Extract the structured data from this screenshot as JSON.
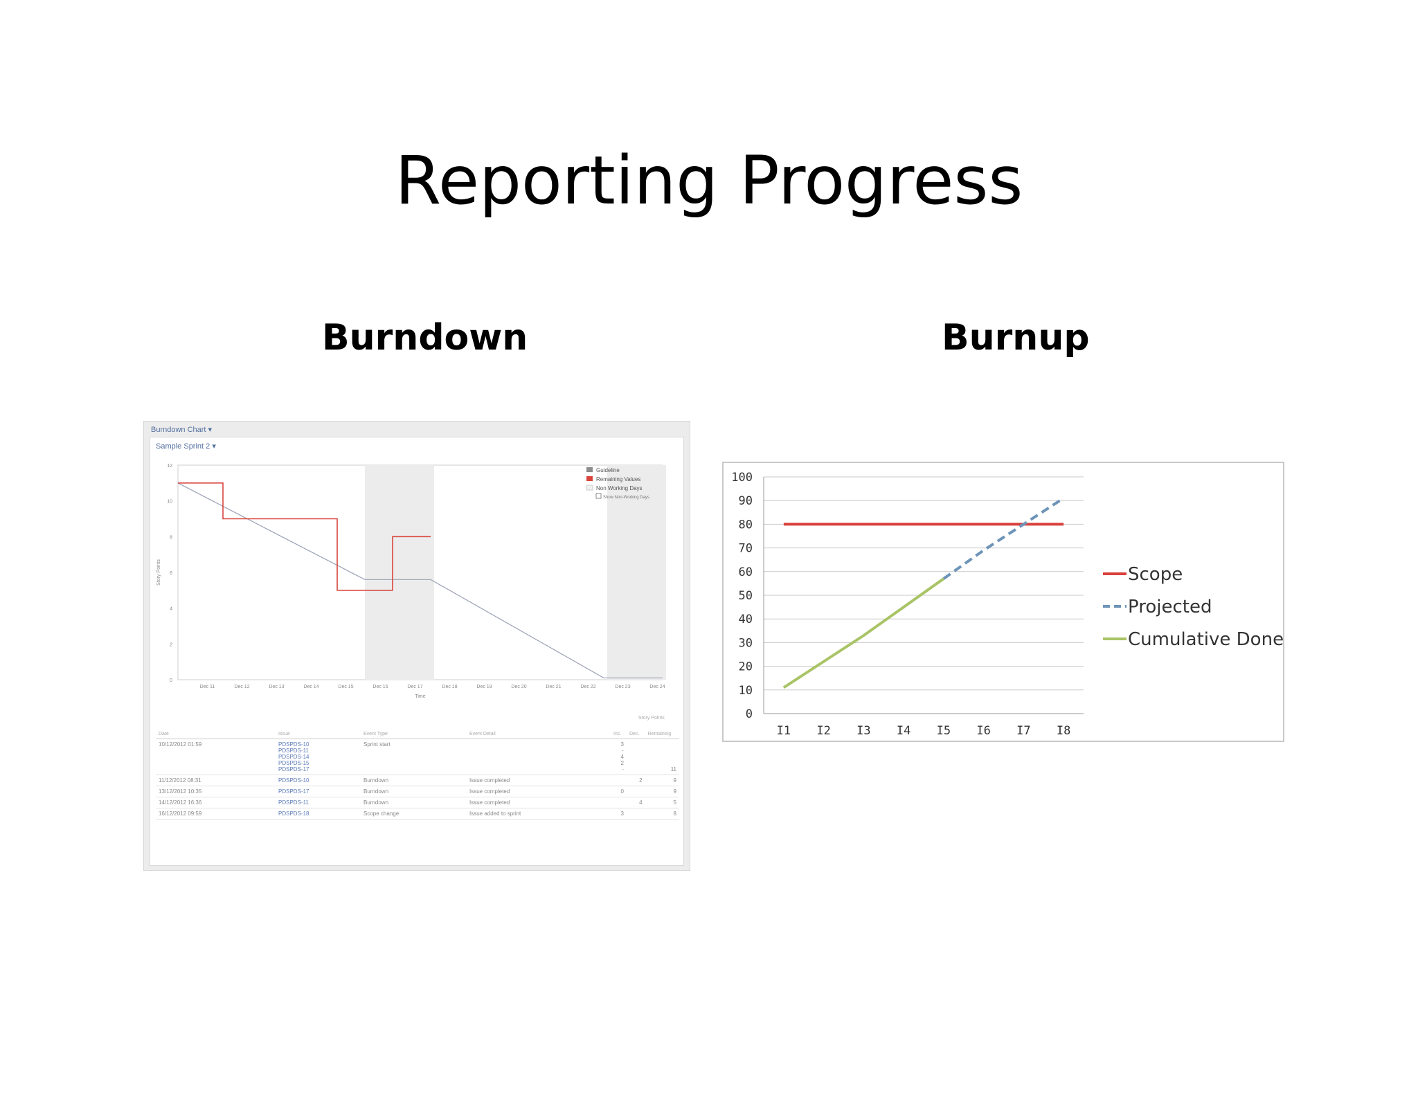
{
  "slide": {
    "title": "Reporting Progress",
    "left_heading": "Burndown",
    "right_heading": "Burnup"
  },
  "burndown": {
    "header": "Burndown Chart",
    "sprint": "Sample Sprint 2",
    "ylabel": "Story Points",
    "xlabel": "Time",
    "legend": [
      "Guideline",
      "Remaining Values",
      "Non Working Days",
      "Show Non-Working Days"
    ],
    "table": {
      "story_points_header": "Story Points",
      "headers": [
        "Date",
        "Issue",
        "Event Type",
        "Event Detail",
        "Inc.",
        "Dec.",
        "Remaining"
      ],
      "rows": [
        {
          "date": "10/12/2012 01:59",
          "issues": [
            "PDSPDS-10",
            "PDSPDS-11",
            "PDSPDS-14",
            "PDSPDS-15",
            "PDSPDS-17"
          ],
          "type": "Sprint start",
          "detail": "",
          "inc": [
            "3",
            "-",
            "4",
            "2",
            "-"
          ],
          "dec": "",
          "remaining": "11"
        },
        {
          "date": "11/12/2012 08:31",
          "issues": [
            "PDSPDS-10"
          ],
          "type": "Burndown",
          "detail": "Issue completed",
          "inc": [
            ""
          ],
          "dec": "2",
          "remaining": "9"
        },
        {
          "date": "13/12/2012 10:35",
          "issues": [
            "PDSPDS-17"
          ],
          "type": "Burndown",
          "detail": "Issue completed",
          "inc": [
            "0"
          ],
          "dec": "",
          "remaining": "9"
        },
        {
          "date": "14/12/2012 16:36",
          "issues": [
            "PDSPDS-11"
          ],
          "type": "Burndown",
          "detail": "Issue completed",
          "inc": [
            ""
          ],
          "dec": "4",
          "remaining": "5"
        },
        {
          "date": "16/12/2012 09:59",
          "issues": [
            "PDSPDS-18"
          ],
          "type": "Scope change",
          "detail": "Issue added to sprint",
          "inc": [
            "3"
          ],
          "dec": "",
          "remaining": "8"
        }
      ]
    }
  },
  "chart_data": [
    {
      "type": "line",
      "x": [
        "Dec 11",
        "Dec 12",
        "Dec 13",
        "Dec 14",
        "Dec 15",
        "Dec 16",
        "Dec 17",
        "Dec 18",
        "Dec 19",
        "Dec 20",
        "Dec 21",
        "Dec 22",
        "Dec 23",
        "Dec 24"
      ],
      "xlabel": "Time",
      "ylabel": "Story Points",
      "yticks": [
        0,
        2,
        4,
        6,
        8,
        10,
        12
      ],
      "ylim": [
        0,
        12
      ],
      "series": [
        {
          "name": "Guideline",
          "points": [
            [
              0,
              11
            ],
            [
              5.4,
              5.6
            ],
            [
              7.3,
              5.6
            ],
            [
              12.3,
              0.1
            ],
            [
              14,
              0.1
            ]
          ]
        },
        {
          "name": "Remaining Values",
          "step": true,
          "points": [
            [
              0,
              11
            ],
            [
              1.3,
              11
            ],
            [
              1.3,
              9
            ],
            [
              4.6,
              9
            ],
            [
              4.6,
              5
            ],
            [
              6.2,
              5
            ],
            [
              6.2,
              8
            ],
            [
              7.3,
              8
            ]
          ]
        }
      ],
      "non_working_days": [
        [
          5.4,
          7.4
        ],
        [
          12.4,
          14.1
        ]
      ],
      "legend": "top-right"
    },
    {
      "type": "line",
      "x": [
        "I1",
        "I2",
        "I3",
        "I4",
        "I5",
        "I6",
        "I7",
        "I8"
      ],
      "yticks": [
        0,
        10,
        20,
        30,
        40,
        50,
        60,
        70,
        80,
        90,
        100
      ],
      "ylim": [
        0,
        100
      ],
      "series": [
        {
          "name": "Scope",
          "values": [
            80,
            80,
            80,
            80,
            80,
            80,
            80,
            80
          ],
          "color": "#d9403c",
          "dash": "solid"
        },
        {
          "name": "Projected",
          "values": [
            null,
            null,
            null,
            null,
            57,
            69,
            80,
            91
          ],
          "color": "#6e94b8",
          "dash": "dashed"
        },
        {
          "name": "Cumulative Done",
          "values": [
            11,
            22,
            33,
            45,
            57,
            null,
            null,
            null
          ],
          "color": "#a9c466",
          "dash": "solid"
        }
      ],
      "legend": "right",
      "grid": true
    }
  ]
}
